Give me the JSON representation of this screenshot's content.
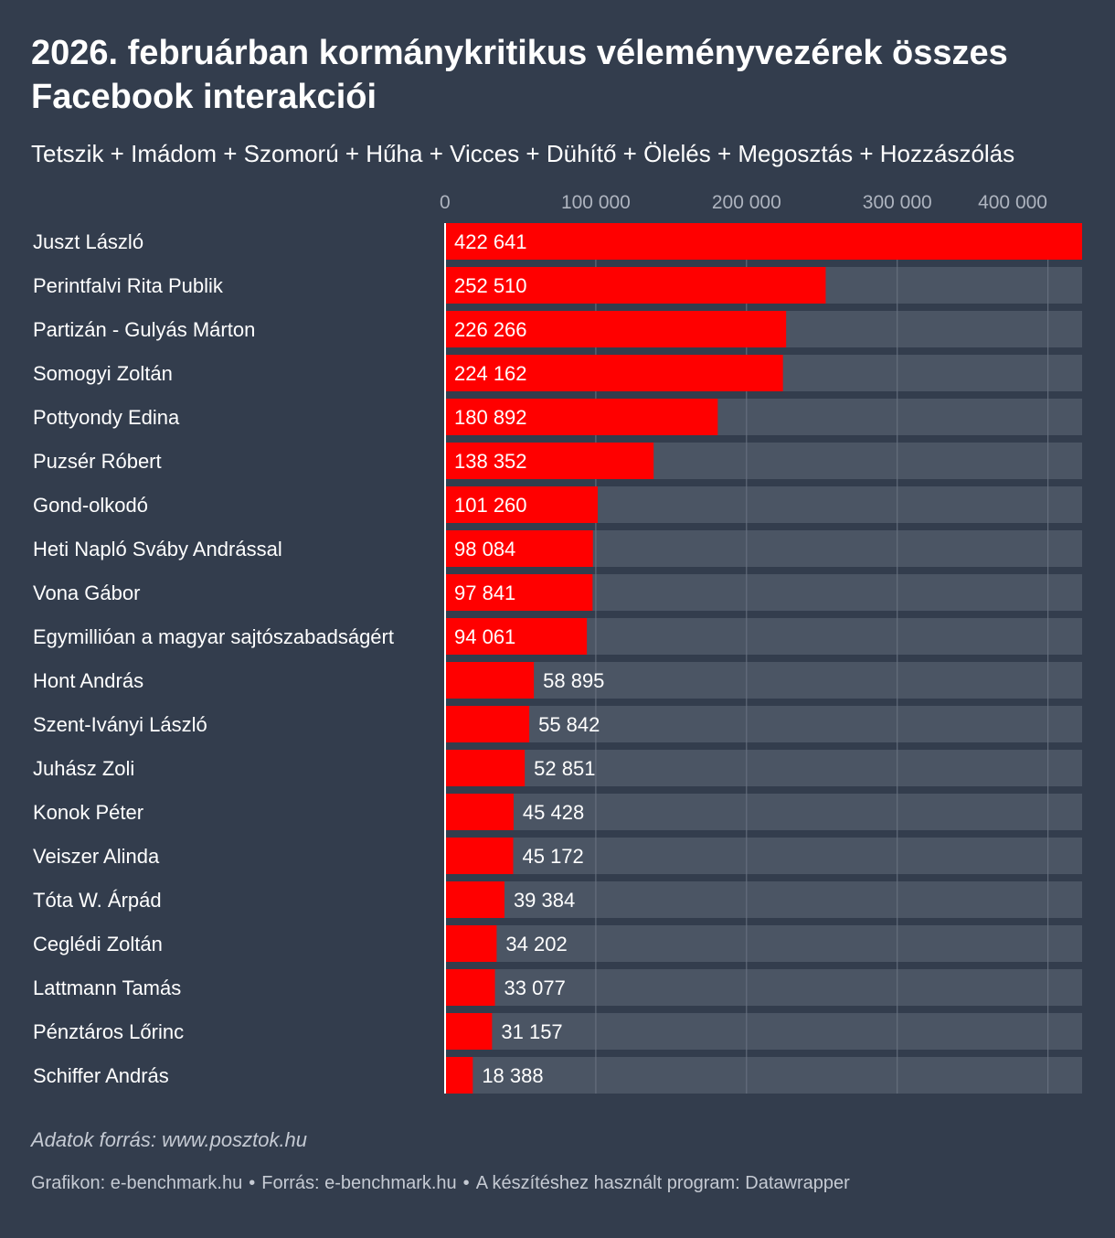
{
  "header": {
    "title": "2026. februárban kormánykritikus véleményvezérek összes Facebook interakciói",
    "subtitle": "Tetszik + Imádom + Szomorú + Hűha + Vicces + Dühítő + Ölelés + Megosztás + Hozzászólás"
  },
  "chart_data": {
    "type": "bar",
    "orientation": "horizontal",
    "categories": [
      "Juszt László",
      "Perintfalvi Rita Publik",
      "Partizán - Gulyás Márton",
      "Somogyi Zoltán",
      "Pottyondy Edina",
      "Puzsér Róbert",
      "Gond-olkodó",
      "Heti Napló Sváby Andrással",
      "Vona Gábor",
      "Egymillióan a magyar sajtószabadságért",
      "Hont András",
      "Szent-Iványi László",
      "Juhász Zoli",
      "Konok Péter",
      "Veiszer Alinda",
      "Tóta W. Árpád",
      "Ceglédi Zoltán",
      "Lattmann Tamás",
      "Pénztáros Lőrinc",
      "Schiffer András"
    ],
    "values": [
      422641,
      252510,
      226266,
      224162,
      180892,
      138352,
      101260,
      98084,
      97841,
      94061,
      58895,
      55842,
      52851,
      45428,
      45172,
      39384,
      34202,
      33077,
      31157,
      18388
    ],
    "value_labels": [
      "422 641",
      "252 510",
      "226 266",
      "224 162",
      "180 892",
      "138 352",
      "101 260",
      "98 084",
      "97 841",
      "94 061",
      "58 895",
      "55 842",
      "52 851",
      "45 428",
      "45 172",
      "39 384",
      "34 202",
      "33 077",
      "31 157",
      "18 388"
    ],
    "xlim": [
      0,
      422641
    ],
    "x_ticks": [
      {
        "value": 0,
        "label": "0"
      },
      {
        "value": 100000,
        "label": "100 000"
      },
      {
        "value": 200000,
        "label": "200 000"
      },
      {
        "value": 300000,
        "label": "300 000"
      },
      {
        "value": 400000,
        "label": "400 000"
      }
    ],
    "grid": true,
    "colors": {
      "background": "#333d4d",
      "bar": "#ff0000",
      "track": "#4b5564",
      "gridline": "#6a7382",
      "tick_label": "#aeb4bf",
      "text": "#ffffff"
    }
  },
  "footer": {
    "note": "Adatok forrás: www.posztok.hu",
    "credit": "Grafikon: e-benchmark.hu",
    "source": "Forrás: e-benchmark.hu",
    "tool": "A készítéshez használt program: Datawrapper",
    "separator": "•"
  }
}
